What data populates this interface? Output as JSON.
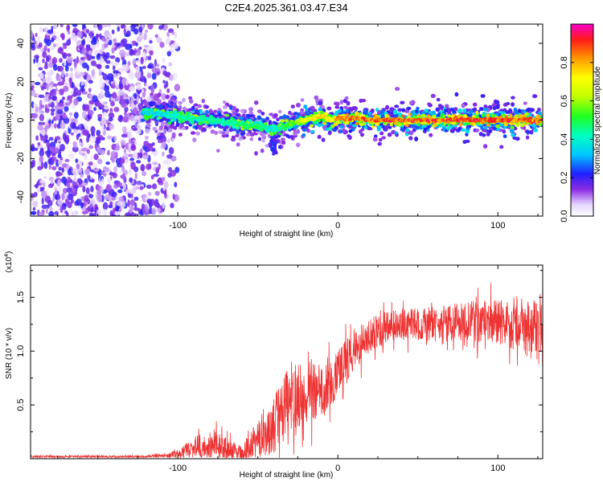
{
  "title": "C2E4.2025.361.03.47.E34",
  "chart_data": [
    {
      "type": "heatmap",
      "name": "spectrogram",
      "xlabel": "Height of straight line (km)",
      "ylabel": "Frequency (Hz)",
      "xlim": [
        -192,
        128
      ],
      "ylim": [
        -50,
        50
      ],
      "xticks": [
        -100,
        0,
        100
      ],
      "yticks": [
        -40,
        -20,
        0,
        20,
        40
      ],
      "xtick_labels": [
        "-100",
        "0",
        "100"
      ],
      "ytick_labels": [
        "-40",
        "-20",
        "0",
        "20",
        "40"
      ],
      "colorbar": {
        "label": "Normalized spectral amplitude",
        "range": [
          0.0,
          1.0
        ],
        "ticks": [
          0.0,
          0.2,
          0.4,
          0.6,
          0.8
        ],
        "tick_labels": [
          "0.0",
          "0.2",
          "0.4",
          "0.6",
          "0.8"
        ]
      },
      "ridge": {
        "description": "dominant frequency ridge",
        "x": [
          -122,
          -110,
          -100,
          -90,
          -80,
          -70,
          -60,
          -50,
          -45,
          -40,
          -30,
          -20,
          -10,
          -5,
          0,
          10,
          20,
          40,
          60,
          80,
          100,
          110,
          128
        ],
        "frequency": [
          4,
          3,
          2,
          1,
          0,
          -1,
          -2,
          -3,
          -4,
          -5,
          -2,
          0,
          2,
          0,
          1,
          1,
          0,
          0,
          0,
          0,
          0,
          0,
          0
        ],
        "amplitude": [
          0.35,
          0.4,
          0.45,
          0.45,
          0.45,
          0.45,
          0.5,
          0.5,
          0.45,
          0.4,
          0.55,
          0.7,
          0.8,
          0.7,
          0.85,
          0.9,
          0.9,
          0.92,
          0.92,
          0.92,
          0.92,
          0.9,
          0.88
        ]
      },
      "noise_region_x": [
        -192,
        -100
      ],
      "noise_amplitude": 0.15
    },
    {
      "type": "line",
      "name": "snr",
      "xlabel": "Height of straight line (km)",
      "ylabel": "SNR (10 * v/v)",
      "y_multiplier_label": "(x10",
      "y_multiplier_exp": "4",
      "xlim": [
        -192,
        128
      ],
      "ylim": [
        0,
        1.8
      ],
      "xticks": [
        -100,
        0,
        100
      ],
      "yticks": [
        0.5,
        1.0,
        1.5
      ],
      "xtick_labels": [
        "-100",
        "0",
        "100"
      ],
      "ytick_labels": [
        "0.5",
        "1.0",
        "1.5"
      ],
      "color": "#ee3333",
      "series": [
        {
          "name": "SNR envelope",
          "x": [
            -192,
            -120,
            -110,
            -100,
            -95,
            -90,
            -85,
            -80,
            -75,
            -70,
            -65,
            -60,
            -55,
            -50,
            -45,
            -40,
            -35,
            -30,
            -25,
            -20,
            -15,
            -10,
            -5,
            0,
            5,
            10,
            15,
            20,
            30,
            40,
            60,
            80,
            100,
            110,
            120,
            128
          ],
          "mean": [
            0.02,
            0.02,
            0.03,
            0.04,
            0.08,
            0.12,
            0.12,
            0.1,
            0.15,
            0.1,
            0.08,
            0.05,
            0.12,
            0.2,
            0.25,
            0.3,
            0.45,
            0.55,
            0.6,
            0.6,
            0.62,
            0.65,
            0.7,
            0.8,
            0.9,
            1.0,
            1.08,
            1.15,
            1.22,
            1.25,
            1.25,
            1.28,
            1.28,
            1.25,
            1.2,
            1.15
          ],
          "spread": [
            0.01,
            0.01,
            0.02,
            0.03,
            0.06,
            0.1,
            0.12,
            0.12,
            0.14,
            0.1,
            0.08,
            0.06,
            0.14,
            0.18,
            0.22,
            0.28,
            0.32,
            0.3,
            0.3,
            0.3,
            0.28,
            0.25,
            0.25,
            0.22,
            0.22,
            0.2,
            0.18,
            0.16,
            0.15,
            0.15,
            0.16,
            0.18,
            0.22,
            0.25,
            0.28,
            0.3
          ]
        }
      ]
    }
  ]
}
